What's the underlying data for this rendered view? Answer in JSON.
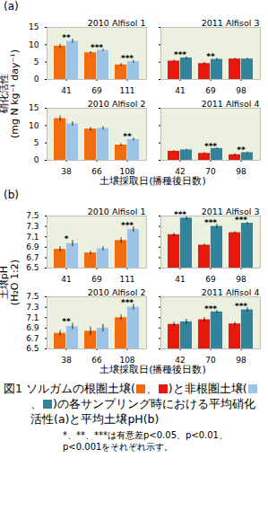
{
  "chart_data": [
    {
      "type": "bar",
      "title": "2010 Alfisol 1",
      "categories": [
        41,
        69,
        111
      ],
      "ylim": [
        0,
        15
      ],
      "yticks": [
        0,
        5,
        10,
        15
      ],
      "series": [
        {
          "name": "根圏土壌",
          "color": "#f26b0f",
          "values": [
            9.6,
            7.7,
            4.2
          ],
          "errors": [
            0.5,
            0.3,
            0.4
          ]
        },
        {
          "name": "非根圏土壌",
          "color": "#9dc3e6",
          "values": [
            11.0,
            8.4,
            5.1
          ],
          "errors": [
            0.6,
            0.3,
            0.4
          ]
        }
      ],
      "significance": [
        "**",
        "***",
        "***"
      ]
    },
    {
      "type": "bar",
      "title": "2011 Alfisol 3",
      "categories": [
        41,
        69,
        98
      ],
      "ylim": [
        0,
        15
      ],
      "yticks": [
        0,
        5,
        10,
        15
      ],
      "tick_labels": "x",
      "series": [
        {
          "name": "根圏土壌",
          "color": "#e8190c",
          "values": [
            5.3,
            4.6,
            5.9
          ],
          "errors": [
            0.3,
            0.3,
            0.2
          ]
        },
        {
          "name": "非根圏土壌",
          "color": "#31849b",
          "values": [
            6.2,
            5.8,
            5.9
          ],
          "errors": [
            0.3,
            0.3,
            0.2
          ]
        }
      ],
      "significance": [
        "***",
        "**",
        null
      ]
    },
    {
      "type": "bar",
      "title": "2010 Alfisol 2",
      "categories": [
        38,
        66,
        108
      ],
      "ylim": [
        0,
        15
      ],
      "yticks": [
        0,
        5,
        10,
        15
      ],
      "series": [
        {
          "name": "根圏土壌",
          "color": "#f26b0f",
          "values": [
            12.0,
            9.0,
            4.4
          ],
          "errors": [
            0.8,
            0.5,
            0.4
          ]
        },
        {
          "name": "非根圏土壌",
          "color": "#9dc3e6",
          "values": [
            10.5,
            9.2,
            6.0
          ],
          "errors": [
            0.6,
            0.5,
            0.4
          ]
        }
      ],
      "significance": [
        null,
        null,
        "**"
      ]
    },
    {
      "type": "bar",
      "title": "2011 Alfisol 4",
      "categories": [
        42,
        70,
        98
      ],
      "ylim": [
        0,
        15
      ],
      "yticks": [
        0,
        5,
        10,
        15
      ],
      "tick_labels": "x",
      "series": [
        {
          "name": "根圏土壌",
          "color": "#e8190c",
          "values": [
            2.6,
            2.0,
            1.6
          ],
          "errors": [
            0.2,
            0.2,
            0.3
          ]
        },
        {
          "name": "非根圏土壌",
          "color": "#31849b",
          "values": [
            3.0,
            3.4,
            2.2
          ],
          "errors": [
            0.2,
            0.2,
            0.2
          ]
        }
      ],
      "significance": [
        null,
        "***",
        "**"
      ]
    },
    {
      "type": "bar",
      "title": "2010 Alfisol 1",
      "categories": [
        41,
        69,
        111
      ],
      "ylim": [
        6.5,
        7.5
      ],
      "yticks": [
        6.5,
        6.7,
        6.9,
        7.1,
        7.3,
        7.5
      ],
      "series": [
        {
          "name": "根圏土壌",
          "color": "#f26b0f",
          "values": [
            6.86,
            6.79,
            7.03
          ],
          "errors": [
            0.05,
            0.03,
            0.05
          ]
        },
        {
          "name": "非根圏土壌",
          "color": "#9dc3e6",
          "values": [
            6.97,
            6.87,
            7.24
          ],
          "errors": [
            0.06,
            0.04,
            0.05
          ]
        }
      ],
      "significance": [
        "*",
        null,
        "***"
      ]
    },
    {
      "type": "bar",
      "title": "2011 Alfisol 3",
      "categories": [
        41,
        69,
        98
      ],
      "ylim": [
        6.5,
        7.5
      ],
      "yticks": [
        6.5,
        6.7,
        6.9,
        7.1,
        7.3,
        7.5
      ],
      "tick_labels": "x",
      "series": [
        {
          "name": "根圏土壌",
          "color": "#e8190c",
          "values": [
            7.14,
            6.94,
            7.18
          ],
          "errors": [
            0.03,
            0.02,
            0.02
          ]
        },
        {
          "name": "非根圏土壌",
          "color": "#31849b",
          "values": [
            7.46,
            7.3,
            7.36
          ],
          "errors": [
            0.04,
            0.04,
            0.02
          ]
        }
      ],
      "significance": [
        "***",
        "***",
        "***"
      ]
    },
    {
      "type": "bar",
      "title": "2010 Alfisol 2",
      "categories": [
        38,
        66,
        108
      ],
      "ylim": [
        6.5,
        7.5
      ],
      "yticks": [
        6.5,
        6.7,
        6.9,
        7.1,
        7.3,
        7.5
      ],
      "series": [
        {
          "name": "根圏土壌",
          "color": "#f26b0f",
          "values": [
            6.8,
            6.84,
            7.1
          ],
          "errors": [
            0.05,
            0.08,
            0.05
          ]
        },
        {
          "name": "非根圏土壌",
          "color": "#9dc3e6",
          "values": [
            6.93,
            6.9,
            7.3
          ],
          "errors": [
            0.06,
            0.07,
            0.05
          ]
        }
      ],
      "significance": [
        "**",
        null,
        "***"
      ]
    },
    {
      "type": "bar",
      "title": "2011 Alfisol 4",
      "categories": [
        42,
        70,
        98
      ],
      "ylim": [
        6.5,
        7.5
      ],
      "yticks": [
        6.5,
        6.7,
        6.9,
        7.1,
        7.3,
        7.5
      ],
      "tick_labels": "x",
      "series": [
        {
          "name": "根圏土壌",
          "color": "#e8190c",
          "values": [
            6.97,
            7.06,
            6.98
          ],
          "errors": [
            0.04,
            0.04,
            0.03
          ]
        },
        {
          "name": "非根圏土壌",
          "color": "#31849b",
          "values": [
            7.02,
            7.21,
            7.25
          ],
          "errors": [
            0.05,
            0.03,
            0.04
          ]
        }
      ],
      "significance": [
        null,
        "***",
        "***"
      ]
    }
  ],
  "panels": [
    {
      "label": "(a)",
      "ylabel": [
        "硝化活性",
        "(mg N kg⁻¹ day⁻¹)"
      ],
      "xlabel": "土壌採取日(播種後日数)"
    },
    {
      "label": "(b)",
      "ylabel": [
        "土壌pH",
        "(H₂O 1:2)"
      ],
      "xlabel": "土壌採取日(播種後日数)"
    }
  ],
  "caption": [
    "図1 ソルガムの根圏土壌(",
    {
      "swatch": "#f26b0f"
    },
    "、",
    {
      "swatch": "#e8190c"
    },
    ")と非根圏土壌(",
    {
      "swatch": "#9dc3e6"
    },
    "、",
    {
      "swatch": "#31849b"
    },
    ")の各サンプリング時における平均硝化活性(a)と平均土壌pH(b)"
  ],
  "note": "*、**、***は有意差p<0.05、p<0.01、p<0.001をそれぞれ示す。"
}
